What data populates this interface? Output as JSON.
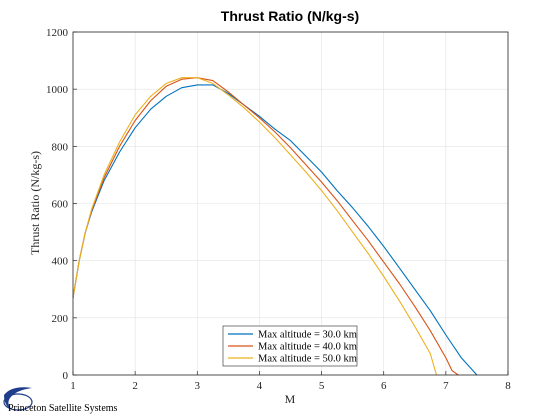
{
  "chart_data": {
    "type": "line",
    "title": "Thrust Ratio (N/kg-s)",
    "xlabel": "M",
    "ylabel": "Thrust Ratio (N/kg-s)",
    "xlim": [
      1,
      8
    ],
    "ylim": [
      0,
      1200
    ],
    "xticks": [
      "1",
      "2",
      "3",
      "4",
      "5",
      "6",
      "7",
      "8"
    ],
    "yticks": [
      "0",
      "200",
      "400",
      "600",
      "800",
      "1000",
      "1200"
    ],
    "grid": true,
    "legend_position": "bottom-center",
    "series": [
      {
        "name": "Max altitude = 30.0 km",
        "color": "#0072BD",
        "x": [
          1.0,
          1.1,
          1.2,
          1.3,
          1.5,
          1.75,
          2.0,
          2.25,
          2.5,
          2.75,
          3.0,
          3.25,
          3.5,
          3.75,
          4.0,
          4.25,
          4.5,
          4.75,
          5.0,
          5.25,
          5.5,
          5.75,
          6.0,
          6.25,
          6.5,
          6.75,
          7.0,
          7.25,
          7.5
        ],
        "y": [
          270,
          400,
          500,
          570,
          680,
          780,
          865,
          930,
          975,
          1005,
          1015,
          1015,
          985,
          945,
          905,
          860,
          820,
          765,
          710,
          645,
          585,
          520,
          450,
          375,
          300,
          225,
          140,
          60,
          0
        ]
      },
      {
        "name": "Max altitude = 40.0 km",
        "color": "#D95319",
        "x": [
          1.0,
          1.1,
          1.2,
          1.3,
          1.5,
          1.75,
          2.0,
          2.25,
          2.5,
          2.75,
          3.0,
          3.25,
          3.5,
          3.75,
          4.0,
          4.25,
          4.5,
          4.75,
          5.0,
          5.25,
          5.5,
          5.75,
          6.0,
          6.25,
          6.5,
          6.75,
          7.0,
          7.1,
          7.2
        ],
        "y": [
          270,
          400,
          500,
          575,
          690,
          800,
          890,
          960,
          1010,
          1035,
          1040,
          1030,
          990,
          945,
          900,
          850,
          795,
          735,
          675,
          610,
          540,
          470,
          395,
          320,
          240,
          155,
          60,
          15,
          0
        ]
      },
      {
        "name": "Max altitude = 50.0 km",
        "color": "#EDB120",
        "x": [
          1.0,
          1.1,
          1.2,
          1.3,
          1.5,
          1.75,
          2.0,
          2.25,
          2.5,
          2.75,
          3.0,
          3.25,
          3.5,
          3.75,
          4.0,
          4.25,
          4.5,
          4.75,
          5.0,
          5.25,
          5.5,
          5.75,
          6.0,
          6.25,
          6.5,
          6.75,
          6.85
        ],
        "y": [
          270,
          400,
          500,
          580,
          700,
          815,
          910,
          975,
          1020,
          1040,
          1040,
          1020,
          980,
          935,
          885,
          830,
          770,
          710,
          645,
          575,
          500,
          425,
          345,
          260,
          170,
          75,
          0
        ]
      }
    ]
  },
  "logo": {
    "text": "Princeton Satellite Systems"
  }
}
